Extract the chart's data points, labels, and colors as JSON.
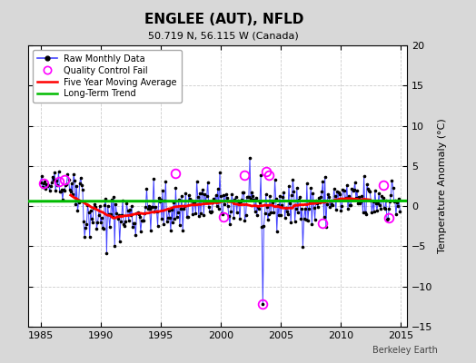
{
  "title": "ENGLEE (AUT), NFLD",
  "subtitle": "50.719 N, 56.115 W (Canada)",
  "ylabel": "Temperature Anomaly (°C)",
  "credit": "Berkeley Earth",
  "xlim": [
    1984.0,
    2015.5
  ],
  "ylim": [
    -15,
    20
  ],
  "yticks": [
    -15,
    -10,
    -5,
    0,
    5,
    10,
    15,
    20
  ],
  "xticks": [
    1985,
    1990,
    1995,
    2000,
    2005,
    2010,
    2015
  ],
  "bg_color": "#d8d8d8",
  "plot_bg_color": "#ffffff",
  "seed": 42,
  "long_term_trend": {
    "x": [
      1984.0,
      2015.5
    ],
    "y": [
      0.6,
      0.65
    ],
    "color": "#00bb00",
    "linewidth": 2.2
  },
  "qc_fail_points": [
    [
      1985.25,
      2.8
    ],
    [
      1986.5,
      3.1
    ],
    [
      1987.0,
      3.3
    ],
    [
      1996.25,
      4.1
    ],
    [
      2000.25,
      -1.3
    ],
    [
      2002.0,
      3.8
    ],
    [
      2003.8,
      4.3
    ],
    [
      2004.0,
      3.9
    ],
    [
      2003.5,
      -12.2
    ],
    [
      2008.5,
      -2.1
    ],
    [
      2013.5,
      2.6
    ],
    [
      2014.0,
      -1.4
    ]
  ],
  "colors": {
    "raw_line": "#4444ff",
    "raw_dot": "#000000",
    "qc_fail": "#ff00ff",
    "moving_avg": "#ff0000",
    "long_trend": "#00bb00"
  },
  "title_fontsize": 11,
  "subtitle_fontsize": 8,
  "tick_labelsize": 8,
  "ylabel_fontsize": 8,
  "legend_fontsize": 7,
  "credit_fontsize": 7
}
